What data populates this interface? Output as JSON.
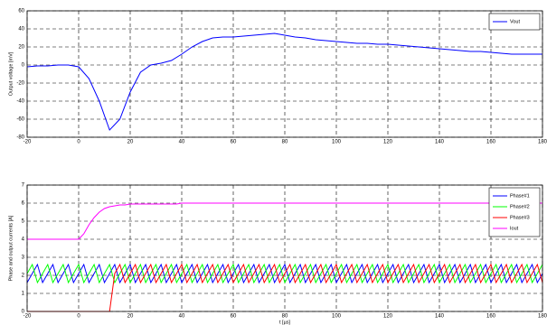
{
  "chart_data": [
    {
      "type": "line",
      "ylabel": "Output voltage [mV]",
      "x": [
        -20,
        -16,
        -12,
        -8,
        -4,
        0,
        4,
        8,
        12,
        16,
        20,
        24,
        28,
        32,
        36,
        40,
        44,
        48,
        52,
        56,
        60,
        64,
        68,
        72,
        76,
        80,
        84,
        88,
        92,
        96,
        100,
        104,
        108,
        112,
        116,
        120,
        124,
        128,
        132,
        136,
        140,
        144,
        148,
        152,
        156,
        160,
        164,
        168,
        172,
        176,
        180
      ],
      "series": [
        {
          "name": "Vout",
          "color": "#0000ff",
          "values": [
            -2,
            -1,
            -1,
            0,
            0,
            -2,
            -15,
            -40,
            -72,
            -60,
            -30,
            -8,
            0,
            2,
            5,
            12,
            20,
            26,
            30,
            31,
            31,
            32,
            33,
            34,
            35,
            33,
            31,
            30,
            28,
            27,
            26,
            25,
            24,
            24,
            23,
            23,
            22,
            21,
            20,
            19,
            18,
            17,
            16,
            15,
            15,
            14,
            13,
            12,
            12,
            12,
            12
          ]
        }
      ],
      "xlim": [
        -20,
        180
      ],
      "xticks": [
        -20,
        0,
        20,
        40,
        60,
        80,
        100,
        120,
        140,
        160,
        180
      ],
      "ylim": [
        -80,
        60
      ],
      "yticks": [
        -80,
        -60,
        -40,
        -20,
        0,
        20,
        40,
        60
      ],
      "grid": true,
      "legend": "upper right"
    },
    {
      "type": "line",
      "xlabel": "t [µs]",
      "ylabel": "Phase and output currents [A]",
      "x": [
        -20,
        -18,
        -16,
        -14,
        -12,
        -10,
        -8,
        -6,
        -4,
        -2,
        0,
        2,
        4,
        6,
        8,
        10,
        12,
        14,
        16,
        18,
        20,
        22,
        24,
        26,
        28,
        30,
        32,
        34,
        36,
        38,
        40,
        42,
        44,
        46,
        48,
        50,
        52,
        54,
        56,
        58,
        60,
        62,
        64,
        66,
        68,
        70,
        72,
        74,
        76,
        78,
        80,
        82,
        84,
        86,
        88,
        90,
        92,
        94,
        96,
        98,
        100,
        102,
        104,
        106,
        108,
        110,
        112,
        114,
        116,
        118,
        120,
        122,
        124,
        126,
        128,
        130,
        132,
        134,
        136,
        138,
        140,
        142,
        144,
        146,
        148,
        150,
        152,
        154,
        156,
        158,
        160,
        162,
        164,
        166,
        168,
        170,
        172,
        174,
        176,
        178,
        180
      ],
      "series": [
        {
          "name": "Phase#1",
          "color": "#0000ff",
          "values": [
            1.6,
            2.1,
            2.6,
            1.6,
            2.1,
            2.6,
            1.6,
            2.1,
            2.6,
            1.6,
            2.1,
            2.6,
            1.6,
            2.1,
            2.6,
            1.6,
            2.1,
            2.6,
            1.6,
            2.1,
            2.6,
            1.6,
            2.1,
            2.6,
            1.6,
            2.1,
            2.6,
            1.6,
            2.1,
            2.6,
            1.6,
            2.1,
            2.6,
            1.6,
            2.1,
            2.6,
            1.6,
            2.1,
            2.6,
            1.6,
            2.1,
            2.6,
            1.6,
            2.1,
            2.6,
            1.6,
            2.1,
            2.6,
            1.6,
            2.1,
            2.6,
            1.6,
            2.1,
            2.6,
            1.6,
            2.1,
            2.6,
            1.6,
            2.1,
            2.6,
            1.6,
            2.1,
            2.6,
            1.6,
            2.1,
            2.6,
            1.6,
            2.1,
            2.6,
            1.6,
            2.1,
            2.6,
            1.6,
            2.1,
            2.6,
            1.6,
            2.1,
            2.6,
            1.6,
            2.1,
            2.6,
            1.6,
            2.1,
            2.6,
            1.6,
            2.1,
            2.6,
            1.6,
            2.1,
            2.6,
            1.6,
            2.1,
            2.6,
            1.6,
            2.1,
            2.6,
            1.6,
            2.1,
            2.6,
            1.6,
            2.1
          ]
        },
        {
          "name": "Phase#2",
          "color": "#00ff00",
          "values": [
            2.1,
            2.6,
            1.6,
            2.1,
            2.6,
            1.6,
            2.1,
            2.6,
            1.6,
            2.1,
            2.6,
            1.6,
            2.1,
            2.6,
            1.6,
            2.1,
            2.6,
            1.6,
            2.1,
            2.6,
            1.6,
            2.1,
            2.6,
            1.6,
            2.1,
            2.6,
            1.6,
            2.1,
            2.6,
            1.6,
            2.1,
            2.6,
            1.6,
            2.1,
            2.6,
            1.6,
            2.1,
            2.6,
            1.6,
            2.1,
            2.6,
            1.6,
            2.1,
            2.6,
            1.6,
            2.1,
            2.6,
            1.6,
            2.1,
            2.6,
            1.6,
            2.1,
            2.6,
            1.6,
            2.1,
            2.6,
            1.6,
            2.1,
            2.6,
            1.6,
            2.1,
            2.6,
            1.6,
            2.1,
            2.6,
            1.6,
            2.1,
            2.6,
            1.6,
            2.1,
            2.6,
            1.6,
            2.1,
            2.6,
            1.6,
            2.1,
            2.6,
            1.6,
            2.1,
            2.6,
            1.6,
            2.1,
            2.6,
            1.6,
            2.1,
            2.6,
            1.6,
            2.1,
            2.6,
            1.6,
            2.1,
            2.6,
            1.6,
            2.1,
            2.6,
            1.6,
            2.1,
            2.6,
            1.6,
            2.1,
            2.6
          ]
        },
        {
          "name": "Phase#3",
          "color": "#ff0000",
          "values": [
            0,
            0,
            0,
            0,
            0,
            0,
            0,
            0,
            0,
            0,
            0,
            0,
            0,
            0,
            0,
            0,
            0,
            2.1,
            2.6,
            1.6,
            2.1,
            2.6,
            1.6,
            2.1,
            2.6,
            1.6,
            2.1,
            2.6,
            1.6,
            2.1,
            2.6,
            1.6,
            2.1,
            2.6,
            1.6,
            2.1,
            2.6,
            1.6,
            2.1,
            2.6,
            1.6,
            2.1,
            2.6,
            1.6,
            2.1,
            2.6,
            1.6,
            2.1,
            2.6,
            1.6,
            2.1,
            2.6,
            1.6,
            2.1,
            2.6,
            1.6,
            2.1,
            2.6,
            1.6,
            2.1,
            2.6,
            1.6,
            2.1,
            2.6,
            1.6,
            2.1,
            2.6,
            1.6,
            2.1,
            2.6,
            1.6,
            2.1,
            2.6,
            1.6,
            2.1,
            2.6,
            1.6,
            2.1,
            2.6,
            1.6,
            2.1,
            2.6,
            1.6,
            2.1,
            2.6,
            1.6,
            2.1,
            2.6,
            1.6,
            2.1,
            2.6,
            1.6,
            2.1,
            2.6,
            1.6,
            2.1,
            2.6,
            1.6,
            2.1,
            2.6,
            1.6
          ]
        },
        {
          "name": "Iout",
          "color": "#ff00ff",
          "values": [
            4,
            4,
            4,
            4,
            4,
            4,
            4,
            4,
            4,
            4,
            4,
            4.3,
            4.8,
            5.2,
            5.5,
            5.7,
            5.8,
            5.85,
            5.9,
            5.9,
            5.95,
            5.95,
            5.95,
            5.95,
            5.95,
            5.95,
            5.95,
            5.95,
            5.95,
            5.95,
            6,
            6,
            6,
            6,
            6,
            6,
            6,
            6,
            6,
            6,
            6,
            6,
            6,
            6,
            6,
            6,
            6,
            6,
            6,
            6,
            6,
            6,
            6,
            6,
            6,
            6,
            6,
            6,
            6,
            6,
            6,
            6,
            6,
            6,
            6,
            6,
            6,
            6,
            6,
            6,
            6,
            6,
            6,
            6,
            6,
            6,
            6,
            6,
            6,
            6,
            6,
            6,
            6,
            6,
            6,
            6,
            6,
            6,
            6,
            6,
            6,
            6,
            6,
            6,
            6,
            6,
            6,
            6,
            6,
            6,
            6
          ]
        }
      ],
      "xlim": [
        -20,
        180
      ],
      "xticks": [
        -20,
        0,
        20,
        40,
        60,
        80,
        100,
        120,
        140,
        160,
        180
      ],
      "ylim": [
        0,
        7
      ],
      "yticks": [
        0,
        1,
        2,
        3,
        4,
        5,
        6,
        7
      ],
      "grid": true,
      "legend": "upper right"
    }
  ]
}
